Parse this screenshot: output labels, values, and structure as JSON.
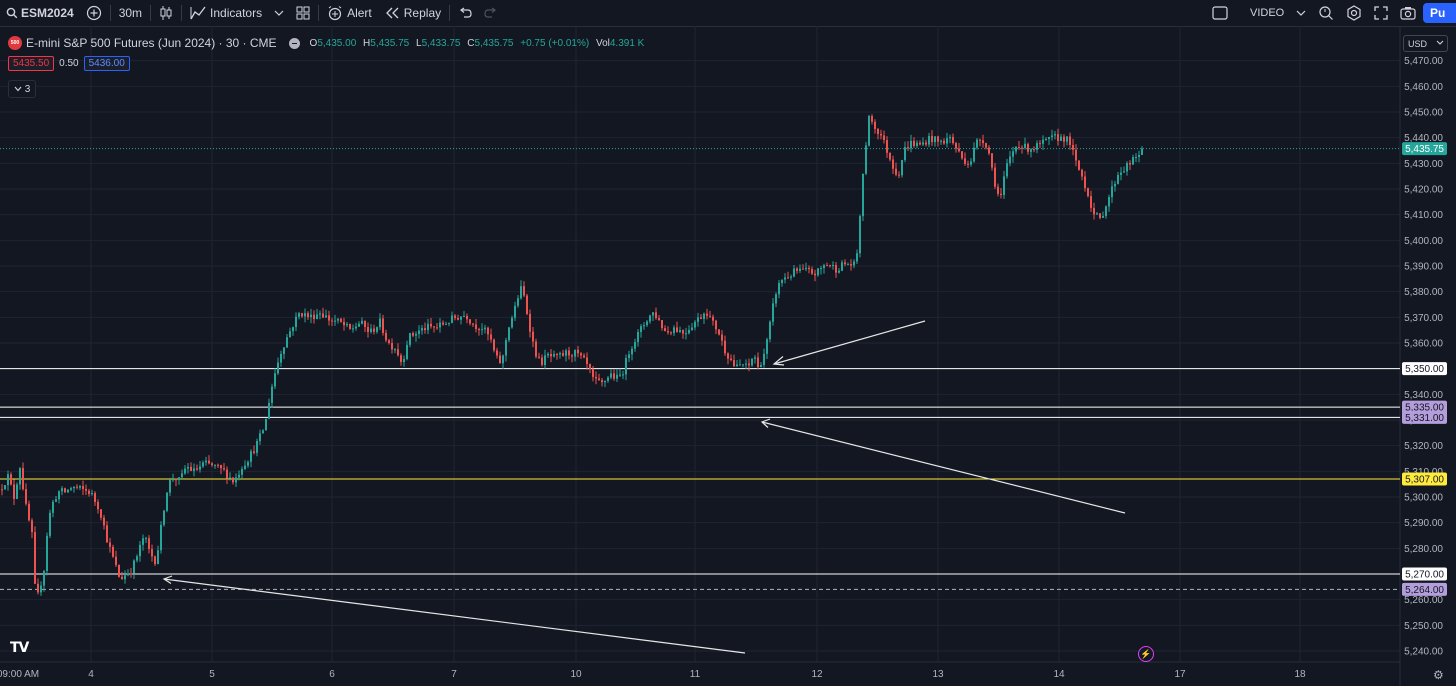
{
  "toolbar": {
    "symbol": "ESM2024",
    "interval": "30m",
    "indicators_label": "Indicators",
    "alert_label": "Alert",
    "replay_label": "Replay",
    "video_label": "VIDEO",
    "publish_label": "Pu"
  },
  "legend": {
    "title": "E-mini S&P 500 Futures (Jun 2024) · 30 · CME",
    "logo_text": "500",
    "o_label": "O",
    "o": "5,435.00",
    "h_label": "H",
    "h": "5,435.75",
    "l_label": "L",
    "l": "5,433.75",
    "c_label": "C",
    "c": "5,435.75",
    "change": "+0.75 (+0.01%)",
    "vol_label": "Vol",
    "vol": "4.391 K",
    "bid": "5435.50",
    "spread": "0.50",
    "ask": "5436.00",
    "collapsed_count": "3"
  },
  "currency": "USD",
  "colors": {
    "up": "#26a69a",
    "down": "#ef5350",
    "background": "#131722",
    "grid": "#1f2433",
    "accent": "#2962ff"
  },
  "chart_data": {
    "type": "candlestick",
    "symbol": "ESM2024",
    "interval": "30m",
    "ylim": [
      5236,
      5474
    ],
    "y_ticks": [
      5240,
      5250,
      5260,
      5270,
      5280,
      5290,
      5300,
      5310,
      5320,
      5330,
      5340,
      5350,
      5360,
      5370,
      5380,
      5390,
      5400,
      5410,
      5420,
      5430,
      5440,
      5450,
      5460,
      5470
    ],
    "x_labels": [
      "09:00 AM",
      "4",
      "5",
      "6",
      "7",
      "10",
      "11",
      "12",
      "13",
      "14",
      "17",
      "18"
    ],
    "last_price": 5435.75,
    "last_price_label": "5,435.75",
    "horizontal_lines": [
      {
        "price": 5350,
        "label": "5,350.00",
        "color": "#ffffff",
        "style": "solid",
        "badge": "plain"
      },
      {
        "price": 5335,
        "label": "5,335.00",
        "color": "#ffffff",
        "style": "solid",
        "badge": "lavender"
      },
      {
        "price": 5331,
        "label": "5,331.00",
        "color": "#ffffff",
        "style": "solid",
        "badge": "lavender"
      },
      {
        "price": 5307,
        "label": "5,307.00",
        "color": "#ffeb3b",
        "style": "solid",
        "badge": "yellow"
      },
      {
        "price": 5270,
        "label": "5,270.00",
        "color": "#ffffff",
        "style": "solid",
        "badge": "plain"
      },
      {
        "price": 5264,
        "label": "5,264.00",
        "color": "#b2b5be",
        "style": "dashed",
        "badge": "lavender"
      }
    ],
    "price_path": [
      [
        0,
        5303
      ],
      [
        8,
        5308
      ],
      [
        14,
        5300
      ],
      [
        20,
        5312
      ],
      [
        26,
        5296
      ],
      [
        32,
        5285
      ],
      [
        36,
        5258
      ],
      [
        40,
        5265
      ],
      [
        44,
        5272
      ],
      [
        48,
        5290
      ],
      [
        52,
        5297
      ],
      [
        58,
        5302
      ],
      [
        66,
        5302
      ],
      [
        72,
        5304
      ],
      [
        80,
        5303
      ],
      [
        90,
        5302
      ],
      [
        100,
        5295
      ],
      [
        108,
        5282
      ],
      [
        114,
        5275
      ],
      [
        120,
        5268
      ],
      [
        126,
        5270
      ],
      [
        132,
        5272
      ],
      [
        138,
        5278
      ],
      [
        144,
        5285
      ],
      [
        150,
        5278
      ],
      [
        156,
        5275
      ],
      [
        160,
        5285
      ],
      [
        164,
        5296
      ],
      [
        168,
        5305
      ],
      [
        174,
        5308
      ],
      [
        180,
        5306
      ],
      [
        186,
        5312
      ],
      [
        194,
        5310
      ],
      [
        204,
        5313
      ],
      [
        214,
        5312
      ],
      [
        224,
        5310
      ],
      [
        234,
        5306
      ],
      [
        242,
        5312
      ],
      [
        250,
        5316
      ],
      [
        256,
        5320
      ],
      [
        262,
        5325
      ],
      [
        266,
        5330
      ],
      [
        270,
        5340
      ],
      [
        276,
        5350
      ],
      [
        282,
        5358
      ],
      [
        288,
        5363
      ],
      [
        294,
        5368
      ],
      [
        300,
        5372
      ],
      [
        310,
        5370
      ],
      [
        320,
        5372
      ],
      [
        330,
        5369
      ],
      [
        340,
        5368
      ],
      [
        350,
        5365
      ],
      [
        360,
        5368
      ],
      [
        370,
        5364
      ],
      [
        380,
        5368
      ],
      [
        388,
        5360
      ],
      [
        396,
        5358
      ],
      [
        402,
        5352
      ],
      [
        408,
        5362
      ],
      [
        416,
        5364
      ],
      [
        426,
        5366
      ],
      [
        436,
        5366
      ],
      [
        446,
        5368
      ],
      [
        456,
        5370
      ],
      [
        466,
        5371
      ],
      [
        474,
        5367
      ],
      [
        482,
        5366
      ],
      [
        490,
        5362
      ],
      [
        496,
        5354
      ],
      [
        502,
        5352
      ],
      [
        508,
        5366
      ],
      [
        514,
        5372
      ],
      [
        518,
        5378
      ],
      [
        522,
        5382
      ],
      [
        528,
        5370
      ],
      [
        534,
        5358
      ],
      [
        540,
        5352
      ],
      [
        548,
        5355
      ],
      [
        556,
        5354
      ],
      [
        566,
        5356
      ],
      [
        576,
        5356
      ],
      [
        586,
        5352
      ],
      [
        594,
        5345
      ],
      [
        602,
        5344
      ],
      [
        610,
        5348
      ],
      [
        618,
        5346
      ],
      [
        624,
        5350
      ],
      [
        630,
        5358
      ],
      [
        636,
        5362
      ],
      [
        642,
        5366
      ],
      [
        648,
        5370
      ],
      [
        654,
        5372
      ],
      [
        660,
        5368
      ],
      [
        666,
        5364
      ],
      [
        674,
        5366
      ],
      [
        684,
        5364
      ],
      [
        694,
        5368
      ],
      [
        700,
        5370
      ],
      [
        706,
        5373
      ],
      [
        712,
        5368
      ],
      [
        718,
        5365
      ],
      [
        724,
        5358
      ],
      [
        730,
        5354
      ],
      [
        736,
        5350
      ],
      [
        742,
        5352
      ],
      [
        748,
        5350
      ],
      [
        754,
        5356
      ],
      [
        758,
        5350
      ],
      [
        764,
        5356
      ],
      [
        768,
        5362
      ],
      [
        772,
        5372
      ],
      [
        776,
        5380
      ],
      [
        782,
        5385
      ],
      [
        788,
        5386
      ],
      [
        796,
        5388
      ],
      [
        806,
        5388
      ],
      [
        816,
        5387
      ],
      [
        826,
        5391
      ],
      [
        836,
        5389
      ],
      [
        846,
        5391
      ],
      [
        856,
        5390
      ],
      [
        862,
        5420
      ],
      [
        866,
        5438
      ],
      [
        870,
        5450
      ],
      [
        874,
        5444
      ],
      [
        880,
        5442
      ],
      [
        886,
        5436
      ],
      [
        892,
        5430
      ],
      [
        898,
        5425
      ],
      [
        904,
        5435
      ],
      [
        910,
        5438
      ],
      [
        920,
        5437
      ],
      [
        930,
        5440
      ],
      [
        940,
        5438
      ],
      [
        950,
        5440
      ],
      [
        956,
        5436
      ],
      [
        962,
        5432
      ],
      [
        970,
        5430
      ],
      [
        976,
        5438
      ],
      [
        982,
        5440
      ],
      [
        988,
        5436
      ],
      [
        994,
        5424
      ],
      [
        1000,
        5415
      ],
      [
        1006,
        5428
      ],
      [
        1012,
        5434
      ],
      [
        1018,
        5438
      ],
      [
        1024,
        5436
      ],
      [
        1034,
        5436
      ],
      [
        1044,
        5438
      ],
      [
        1054,
        5440
      ],
      [
        1064,
        5440
      ],
      [
        1070,
        5438
      ],
      [
        1076,
        5430
      ],
      [
        1082,
        5425
      ],
      [
        1088,
        5418
      ],
      [
        1094,
        5410
      ],
      [
        1100,
        5408
      ],
      [
        1106,
        5414
      ],
      [
        1112,
        5420
      ],
      [
        1118,
        5426
      ],
      [
        1124,
        5428
      ],
      [
        1130,
        5430
      ],
      [
        1136,
        5432
      ],
      [
        1142,
        5435.75
      ]
    ]
  }
}
